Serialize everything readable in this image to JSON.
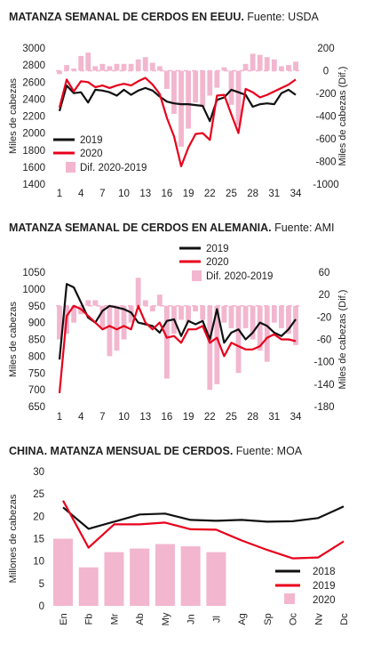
{
  "colors": {
    "line2019": "#111111",
    "line2020": "#e8001c",
    "bars": "#f2b6cf",
    "zero": "#dcdcdc"
  },
  "charts": [
    {
      "title": "MATANZA SEMANAL DE CERDOS EN EEUU.",
      "source": " Fuente: USDA",
      "chart_data": {
        "type": "bar+line",
        "x": [
          1,
          2,
          3,
          4,
          5,
          6,
          7,
          8,
          9,
          10,
          11,
          12,
          13,
          14,
          15,
          16,
          17,
          18,
          19,
          20,
          21,
          22,
          23,
          24,
          25,
          26,
          27,
          28,
          29,
          30,
          31,
          32,
          33,
          34
        ],
        "xticks": [
          "1",
          "4",
          "7",
          "10",
          "13",
          "16",
          "19",
          "22",
          "25",
          "28",
          "31",
          "34"
        ],
        "ylabel_left": "Miles de cabezas",
        "ylabel_right": "Miles de cabezas (Dif.)",
        "ylim_left": [
          1400,
          3000
        ],
        "yticks_left": [
          "1400",
          "1600",
          "1800",
          "2000",
          "2200",
          "2400",
          "2600",
          "2800",
          "3000"
        ],
        "ylim_right": [
          -1000,
          200
        ],
        "yticks_right": [
          "-1000",
          "-800",
          "-600",
          "-400",
          "-200",
          "0",
          "200"
        ],
        "legend": [
          "2019",
          "2020",
          "Dif. 2020-2019"
        ],
        "series": [
          {
            "name": "2019",
            "axis": "left",
            "values": [
              2260,
              2560,
              2470,
              2480,
              2360,
              2510,
              2500,
              2480,
              2440,
              2510,
              2450,
              2500,
              2530,
              2500,
              2430,
              2370,
              2350,
              2340,
              2340,
              2330,
              2320,
              2140,
              2390,
              2420,
              2510,
              2480,
              2450,
              2310,
              2340,
              2350,
              2340,
              2470,
              2510,
              2450
            ]
          },
          {
            "name": "2020",
            "axis": "left",
            "values": [
              2300,
              2630,
              2490,
              2610,
              2600,
              2540,
              2560,
              2530,
              2560,
              2580,
              2560,
              2610,
              2650,
              2570,
              2460,
              2180,
              1960,
              1610,
              1830,
              1990,
              2000,
              1920,
              2440,
              2450,
              2220,
              2000,
              2520,
              2480,
              2420,
              2450,
              2490,
              2530,
              2570,
              2630
            ]
          },
          {
            "name": "Dif. 2020-2019",
            "axis": "right",
            "type": "bar",
            "values": [
              -30,
              50,
              20,
              130,
              160,
              40,
              60,
              40,
              60,
              60,
              60,
              100,
              120,
              70,
              40,
              -160,
              -380,
              -670,
              -510,
              -280,
              -320,
              -220,
              -150,
              30,
              -300,
              -480,
              60,
              150,
              140,
              120,
              100,
              40,
              50,
              80
            ]
          }
        ]
      }
    },
    {
      "title": "MATANZA SEMANAL DE CERDOS EN ALEMANIA.",
      "source": " Fuente: AMI",
      "chart_data": {
        "type": "bar+line",
        "x": [
          1,
          2,
          3,
          4,
          5,
          6,
          7,
          8,
          9,
          10,
          11,
          12,
          13,
          14,
          15,
          16,
          17,
          18,
          19,
          20,
          21,
          22,
          23,
          24,
          25,
          26,
          27,
          28,
          29,
          30,
          31,
          32,
          33,
          34
        ],
        "xticks": [
          "1",
          "4",
          "7",
          "10",
          "13",
          "16",
          "19",
          "22",
          "25",
          "28",
          "31",
          "34"
        ],
        "ylabel_left": "Miles de cabezas",
        "ylabel_right": "Miles de cabezas (Dif.)",
        "ylim_left": [
          650,
          1050
        ],
        "yticks_left": [
          "650",
          "700",
          "750",
          "800",
          "850",
          "900",
          "950",
          "1000",
          "1050"
        ],
        "ylim_right": [
          -180,
          60
        ],
        "yticks_right": [
          "-180",
          "-140",
          "-100",
          "-60",
          "-20",
          "20",
          "60"
        ],
        "legend": [
          "2019",
          "2020",
          "Dif. 2020-2019"
        ],
        "series": [
          {
            "name": "2019",
            "axis": "left",
            "values": [
              790,
              1015,
              1005,
              960,
              915,
              900,
              935,
              950,
              945,
              940,
              930,
              900,
              895,
              890,
              870,
              905,
              910,
              860,
              905,
              895,
              905,
              850,
              940,
              840,
              870,
              880,
              850,
              870,
              900,
              890,
              870,
              860,
              880,
              910
            ]
          },
          {
            "name": "2020",
            "axis": "left",
            "values": [
              690,
              920,
              950,
              940,
              920,
              900,
              880,
              890,
              880,
              890,
              880,
              950,
              900,
              880,
              900,
              855,
              860,
              840,
              880,
              880,
              890,
              840,
              855,
              800,
              840,
              830,
              820,
              820,
              830,
              855,
              865,
              850,
              850,
              845
            ]
          },
          {
            "name": "Dif. 2020-2019",
            "axis": "right",
            "type": "bar",
            "values": [
              -60,
              -50,
              -30,
              -15,
              10,
              10,
              -40,
              -90,
              -80,
              -60,
              -30,
              50,
              10,
              -10,
              20,
              -130,
              -50,
              -25,
              -30,
              -10,
              -25,
              -150,
              -140,
              -30,
              -40,
              -120,
              -40,
              -60,
              -80,
              -100,
              -30,
              -40,
              -50,
              -70
            ]
          }
        ]
      }
    },
    {
      "title": "CHINA. MATANZA MENSUAL DE CERDOS.",
      "source": " Fuente: MOA",
      "chart_data": {
        "type": "bar+line",
        "categories": [
          "En",
          "Fb",
          "Mr",
          "Ab",
          "My",
          "Jn",
          "Jl",
          "Ag",
          "Sp",
          "Oc",
          "Nv",
          "Dc"
        ],
        "ylabel": "Millones de cabezas",
        "ylim": [
          0,
          30
        ],
        "yticks": [
          "0",
          "5",
          "10",
          "15",
          "20",
          "25",
          "30"
        ],
        "legend": [
          "2018",
          "2019",
          "2020"
        ],
        "series": [
          {
            "name": "2018",
            "type": "line",
            "values": [
              22.0,
              17.2,
              18.8,
              20.4,
              20.6,
              19.2,
              19.0,
              19.2,
              18.8,
              18.9,
              19.6,
              22.2
            ]
          },
          {
            "name": "2019",
            "type": "line",
            "values": [
              23.5,
              13.0,
              18.2,
              18.2,
              18.6,
              17.1,
              17.0,
              14.6,
              12.5,
              10.6,
              10.8,
              14.4
            ]
          },
          {
            "name": "2020",
            "type": "bar",
            "values": [
              15.0,
              8.6,
              12.0,
              12.8,
              13.8,
              13.3,
              12.0,
              null,
              null,
              null,
              null,
              null
            ]
          }
        ]
      }
    }
  ]
}
